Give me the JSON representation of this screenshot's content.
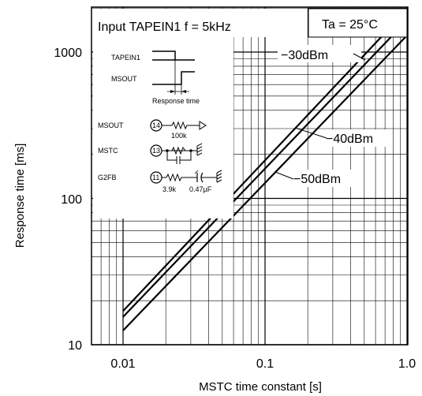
{
  "chart_data": {
    "type": "line",
    "xlabel": "MSTC  time constant [s]",
    "ylabel": "Response time [ms]",
    "xscale": "log",
    "yscale": "log",
    "xlim": [
      0.01,
      1.0
    ],
    "ylim": [
      10,
      1000
    ],
    "x_ticks": [
      "0.01",
      "0.1",
      "1.0"
    ],
    "y_ticks": [
      "10",
      "100",
      "1000"
    ],
    "grid": true,
    "annotations": {
      "condition": "Input TAPEIN1 f = 5kHz",
      "temperature": "Ta = 25°C"
    },
    "series": [
      {
        "name": "−30dBm",
        "x": [
          0.01,
          1.0
        ],
        "y": [
          17,
          1950
        ]
      },
      {
        "name": "−40dBm",
        "x": [
          0.01,
          1.0
        ],
        "y": [
          15.5,
          1650
        ]
      },
      {
        "name": "−50dBm",
        "x": [
          0.01,
          1.0
        ],
        "y": [
          12.5,
          1300
        ]
      }
    ]
  },
  "inset": {
    "signal_1": "TAPEIN1",
    "signal_2": "MSOUT",
    "response_time_label": "Response time",
    "pin_a_name": "MSOUT",
    "pin_a_num": "14",
    "pin_a_value": "100k",
    "pin_b_name": "MSTC",
    "pin_b_num": "13",
    "pin_c_name": "G2FB",
    "pin_c_num": "11",
    "pin_c_r": "3.9k",
    "pin_c_c": "0.47µF"
  }
}
